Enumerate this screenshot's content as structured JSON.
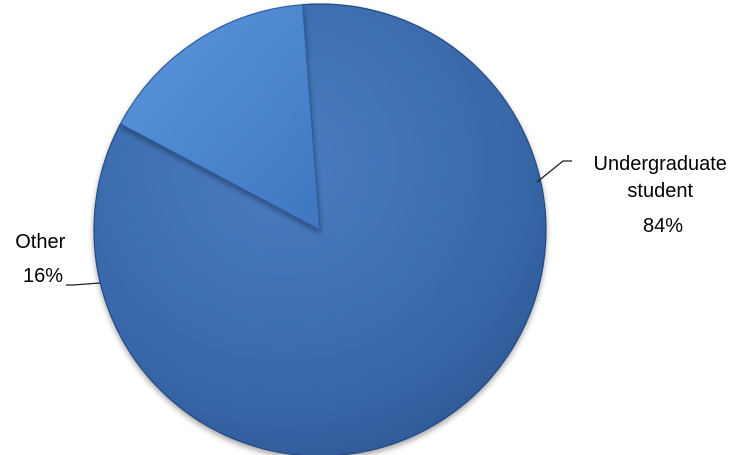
{
  "chart_data": {
    "type": "pie",
    "title": "",
    "legend": "none",
    "slices": [
      {
        "name": "Undergraduate student",
        "name_lines": [
          "Undergraduate",
          "student"
        ],
        "value": 84,
        "percent_label": "84%",
        "color": "#3a6aaa"
      },
      {
        "name": "Other",
        "name_lines": [
          "Other"
        ],
        "value": 16,
        "percent_label": "16%",
        "color": "#4f89d2"
      }
    ]
  }
}
